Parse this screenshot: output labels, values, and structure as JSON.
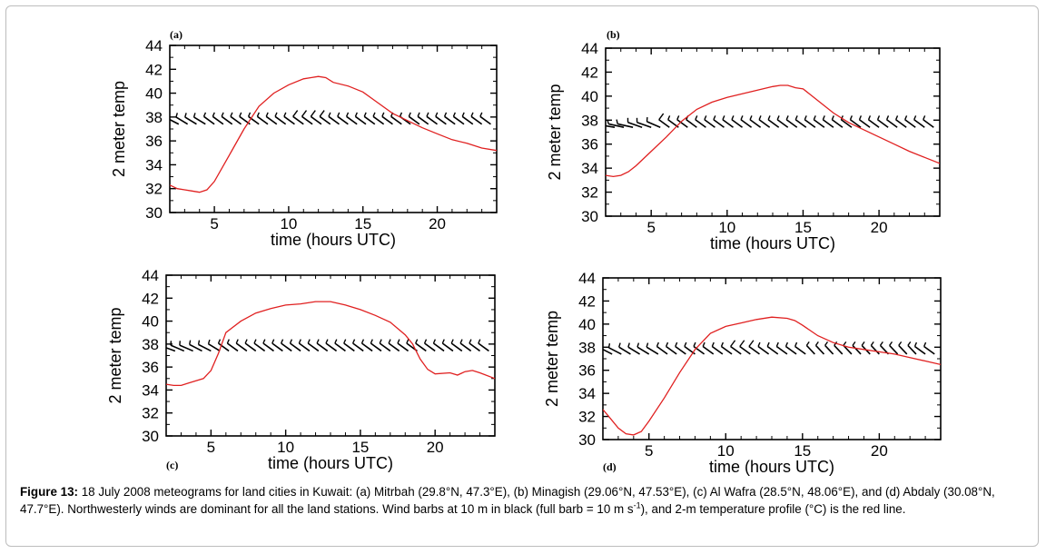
{
  "colors": {
    "temperature_line": "#e02020",
    "wind_barbs": "#000000",
    "axes": "#000000",
    "frame_border": "#bdbdbd"
  },
  "chart_data": [
    {
      "type": "line",
      "panel_label": "(a)",
      "xlabel": "time (hours UTC)",
      "ylabel": "2 meter temp",
      "xlim": [
        2,
        24
      ],
      "ylim": [
        30,
        44
      ],
      "xticks": [
        5,
        10,
        15,
        20
      ],
      "yticks": [
        30,
        32,
        34,
        36,
        38,
        40,
        42,
        44
      ],
      "series": [
        {
          "x": [
            2,
            2.5,
            3,
            3.5,
            4,
            4.5,
            5,
            6,
            7,
            8,
            9,
            10,
            11,
            11.5,
            12,
            12.5,
            13,
            14,
            15,
            16,
            17,
            18,
            19,
            20,
            21,
            22,
            23,
            24
          ],
          "y": [
            32.3,
            32.0,
            31.9,
            31.8,
            31.7,
            31.9,
            32.6,
            34.8,
            37.0,
            38.9,
            40.0,
            40.7,
            41.2,
            41.3,
            41.4,
            41.3,
            40.9,
            40.6,
            40.1,
            39.2,
            38.3,
            37.7,
            37.1,
            36.6,
            36.1,
            35.8,
            35.4,
            35.2
          ]
        }
      ],
      "wind_barbs": {
        "x": [
          2,
          2.6,
          3.2,
          3.8,
          4.4,
          5,
          5.6,
          6.2,
          6.8,
          7.4,
          8,
          8.6,
          9.2,
          9.8,
          10.4,
          11,
          11.6,
          12.2,
          12.8,
          13.4,
          14,
          14.6,
          15.2,
          15.8,
          16.4,
          17,
          17.6,
          18.2,
          18.8,
          19.4,
          20,
          20.6,
          21.2,
          21.8,
          22.4,
          23,
          23.6
        ],
        "speed_ms": [
          8,
          4,
          4,
          4,
          4,
          4,
          4,
          5,
          5,
          5,
          6,
          6,
          6,
          6,
          7,
          8,
          8,
          8,
          8,
          7,
          6,
          6,
          5,
          5,
          5,
          5,
          6,
          6,
          6,
          6,
          6,
          6,
          6,
          6,
          6,
          5,
          5
        ],
        "direction_deg": [
          290,
          310,
          315,
          315,
          315,
          320,
          320,
          320,
          320,
          320,
          320,
          320,
          320,
          320,
          320,
          320,
          320,
          320,
          320,
          320,
          320,
          320,
          320,
          320,
          320,
          320,
          320,
          320,
          320,
          320,
          320,
          320,
          320,
          320,
          320,
          320,
          320
        ]
      }
    },
    {
      "type": "line",
      "panel_label": "(b)",
      "xlabel": "time (hours UTC)",
      "ylabel": "2 meter temp",
      "xlim": [
        2,
        24
      ],
      "ylim": [
        30,
        44
      ],
      "xticks": [
        5,
        10,
        15,
        20
      ],
      "yticks": [
        30,
        32,
        34,
        36,
        38,
        40,
        42,
        44
      ],
      "series": [
        {
          "x": [
            2,
            2.5,
            3,
            3.5,
            4,
            5,
            6,
            7,
            8,
            9,
            10,
            11,
            12,
            13,
            13.5,
            14,
            14.5,
            15,
            16,
            17,
            18,
            19,
            20,
            21,
            22,
            23,
            24
          ],
          "y": [
            33.4,
            33.3,
            33.4,
            33.7,
            34.2,
            35.4,
            36.6,
            37.9,
            38.9,
            39.5,
            39.9,
            40.2,
            40.5,
            40.8,
            40.9,
            40.9,
            40.7,
            40.6,
            39.6,
            38.6,
            37.8,
            37.2,
            36.6,
            36.0,
            35.4,
            34.9,
            34.4
          ]
        }
      ],
      "wind_barbs": {
        "x": [
          2,
          2.6,
          3.2,
          3.8,
          4.4,
          5,
          5.6,
          6.2,
          6.8,
          7.4,
          8,
          8.6,
          9.2,
          9.8,
          10.4,
          11,
          11.6,
          12.2,
          12.8,
          13.4,
          14,
          14.6,
          15.2,
          15.8,
          16.4,
          17,
          17.6,
          18.2,
          18.8,
          19.4,
          20,
          20.6,
          21.2,
          21.8,
          22.4,
          23,
          23.6
        ],
        "speed_ms": [
          4,
          4,
          4,
          4,
          4,
          4,
          4,
          8,
          7,
          5,
          5,
          5,
          5,
          5,
          5,
          5,
          5,
          5,
          5,
          5,
          6,
          6,
          6,
          6,
          6,
          6,
          6,
          6,
          6,
          6,
          6,
          6,
          6,
          6,
          6,
          6,
          6
        ],
        "direction_deg": [
          280,
          285,
          290,
          290,
          300,
          300,
          305,
          320,
          320,
          320,
          320,
          320,
          320,
          320,
          320,
          320,
          320,
          320,
          320,
          320,
          320,
          320,
          320,
          320,
          320,
          320,
          320,
          320,
          320,
          320,
          320,
          320,
          320,
          320,
          320,
          320,
          320
        ]
      }
    },
    {
      "type": "line",
      "panel_label": "(c)",
      "xlabel": "time (hours UTC)",
      "ylabel": "2 meter temp",
      "xlim": [
        2,
        24
      ],
      "ylim": [
        30,
        44
      ],
      "xticks": [
        5,
        10,
        15,
        20
      ],
      "yticks": [
        30,
        32,
        34,
        36,
        38,
        40,
        42,
        44
      ],
      "series": [
        {
          "x": [
            2,
            2.5,
            3,
            3.5,
            4,
            4.5,
            5,
            5.5,
            6,
            7,
            8,
            9,
            10,
            11,
            12,
            12.5,
            13,
            14,
            15,
            16,
            17,
            18,
            18.5,
            19,
            19.5,
            20,
            21,
            21.5,
            22,
            22.5,
            23,
            24
          ],
          "y": [
            34.5,
            34.4,
            34.4,
            34.6,
            34.8,
            35.0,
            35.7,
            37.2,
            39.0,
            40.0,
            40.7,
            41.1,
            41.4,
            41.5,
            41.7,
            41.7,
            41.7,
            41.4,
            41.0,
            40.5,
            39.9,
            38.8,
            38.0,
            36.7,
            35.8,
            35.4,
            35.5,
            35.3,
            35.6,
            35.7,
            35.5,
            35.0
          ]
        }
      ],
      "wind_barbs": {
        "x": [
          2,
          2.6,
          3.2,
          3.8,
          4.4,
          5,
          5.6,
          6.2,
          6.8,
          7.4,
          8,
          8.6,
          9.2,
          9.8,
          10.4,
          11,
          11.6,
          12.2,
          12.8,
          13.4,
          14,
          14.6,
          15.2,
          15.8,
          16.4,
          17,
          17.6,
          18.2,
          18.8,
          19.4,
          20,
          20.6,
          21.2,
          21.8,
          22.4,
          23,
          23.6
        ],
        "speed_ms": [
          8,
          5,
          5,
          5,
          5,
          5,
          4,
          4,
          5,
          5,
          5,
          6,
          6,
          6,
          6,
          6,
          6,
          6,
          6,
          6,
          6,
          5,
          5,
          5,
          5,
          5,
          5,
          5,
          5,
          6,
          6,
          6,
          6,
          6,
          6,
          6,
          6
        ],
        "direction_deg": [
          280,
          300,
          305,
          305,
          310,
          310,
          315,
          320,
          320,
          320,
          320,
          320,
          320,
          320,
          320,
          320,
          320,
          320,
          320,
          320,
          320,
          320,
          320,
          320,
          320,
          320,
          320,
          320,
          320,
          320,
          320,
          320,
          320,
          320,
          320,
          320,
          320
        ]
      }
    },
    {
      "type": "line",
      "panel_label": "(d)",
      "xlabel": "time (hours UTC)",
      "ylabel": "2 meter temp",
      "xlim": [
        2,
        24
      ],
      "ylim": [
        30,
        44
      ],
      "xticks": [
        5,
        10,
        15,
        20
      ],
      "yticks": [
        30,
        32,
        34,
        36,
        38,
        40,
        42,
        44
      ],
      "series": [
        {
          "x": [
            2,
            2.5,
            3,
            3.5,
            4,
            4.5,
            5,
            6,
            7,
            8,
            9,
            10,
            11,
            12,
            13,
            14,
            14.5,
            15,
            16,
            17,
            18,
            19,
            20,
            21,
            22,
            23,
            24
          ],
          "y": [
            32.6,
            31.8,
            31.0,
            30.5,
            30.4,
            30.7,
            31.6,
            33.6,
            35.8,
            37.8,
            39.2,
            39.8,
            40.1,
            40.4,
            40.6,
            40.5,
            40.3,
            39.9,
            39.0,
            38.4,
            38.0,
            37.8,
            37.6,
            37.4,
            37.1,
            36.8,
            36.5
          ]
        }
      ],
      "wind_barbs": {
        "x": [
          2,
          2.6,
          3.2,
          3.8,
          4.4,
          5,
          5.6,
          6.2,
          6.8,
          7.4,
          8,
          8.6,
          9.2,
          9.8,
          10.4,
          11,
          11.6,
          12.2,
          12.8,
          13.4,
          14,
          14.6,
          15.2,
          15.8,
          16.4,
          17,
          17.6,
          18.2,
          18.8,
          19.4,
          20,
          20.6,
          21.2,
          21.8,
          22.4,
          23,
          23.6
        ],
        "speed_ms": [
          7,
          5,
          5,
          5,
          5,
          5,
          5,
          5,
          5,
          5,
          5,
          6,
          6,
          6,
          7,
          8,
          8,
          8,
          7,
          6,
          6,
          5,
          5,
          5,
          5,
          5,
          5,
          5,
          5,
          5,
          5,
          5,
          5,
          5,
          5,
          5,
          5
        ],
        "direction_deg": [
          290,
          310,
          310,
          315,
          315,
          315,
          315,
          320,
          320,
          320,
          320,
          320,
          320,
          320,
          320,
          320,
          320,
          320,
          320,
          320,
          320,
          320,
          320,
          330,
          330,
          330,
          330,
          330,
          330,
          330,
          330,
          330,
          330,
          330,
          330,
          320,
          320
        ]
      }
    }
  ],
  "caption": {
    "label": "Figure 13:",
    "text_part1": " 18 July 2008 meteograms for land cities in Kuwait: (a) Mitrbah (29.8°N, 47.3°E), (b) Minagish (29.06°N, 47.53°E), (c) Al Wafra (28.5°N, 48.06°E), and (d) Abdaly (30.08°N, 47.7°E). Northwesterly winds are dominant for all the land stations. Wind barbs at 10 m in black (full barb = 10 m s",
    "superscript": "-1",
    "text_part2": "), and 2-m temperature profile (°C) is the red line."
  }
}
